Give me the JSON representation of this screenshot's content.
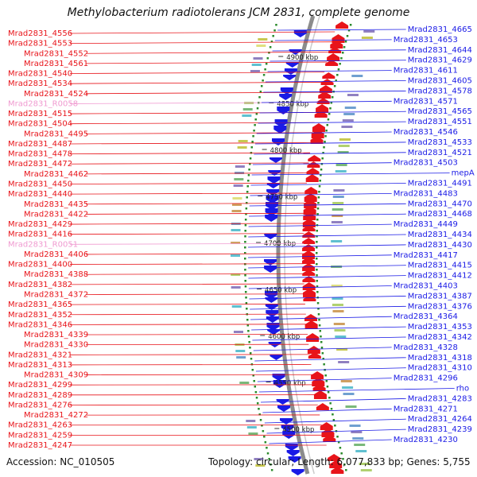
{
  "title": "Methylobacterium radiotolerans JCM 2831, complete genome",
  "accession": "Accession: NC_010505",
  "topology": "Topology: circular; Length: 6,077,833 bp; Genes: 5,755",
  "colors": {
    "forward": "#e8141a",
    "reverse": "#1a1ae6",
    "rna": "#f09ad0",
    "backbone": "#8c8c8c",
    "gc_dots": "#2a8a2a"
  },
  "kbp_ticks": [
    "4500 kbp",
    "4550 kbp",
    "4600 kbp",
    "4650 kbp",
    "4700 kbp",
    "4750 kbp",
    "4800 kbp",
    "4850 kbp",
    "4900 kbp"
  ],
  "left_labels": [
    {
      "text": "Mrad2831_4556",
      "kind": "forward"
    },
    {
      "text": "Mrad2831_4553",
      "kind": "forward"
    },
    {
      "text": "Mrad2831_4552",
      "kind": "forward"
    },
    {
      "text": "Mrad2831_4561",
      "kind": "forward"
    },
    {
      "text": "Mrad2831_4540",
      "kind": "forward"
    },
    {
      "text": "Mrad2831_4534",
      "kind": "forward"
    },
    {
      "text": "Mrad2831_4524",
      "kind": "forward"
    },
    {
      "text": "Mrad2831_R0058",
      "kind": "rna"
    },
    {
      "text": "Mrad2831_4515",
      "kind": "forward"
    },
    {
      "text": "Mrad2831_4504",
      "kind": "forward"
    },
    {
      "text": "Mrad2831_4495",
      "kind": "forward"
    },
    {
      "text": "Mrad2831_4487",
      "kind": "forward"
    },
    {
      "text": "Mrad2831_4478",
      "kind": "forward"
    },
    {
      "text": "Mrad2831_4472",
      "kind": "forward"
    },
    {
      "text": "Mrad2831_4462",
      "kind": "forward"
    },
    {
      "text": "Mrad2831_4450",
      "kind": "forward"
    },
    {
      "text": "Mrad2831_4440",
      "kind": "forward"
    },
    {
      "text": "Mrad2831_4435",
      "kind": "forward"
    },
    {
      "text": "Mrad2831_4422",
      "kind": "forward"
    },
    {
      "text": "Mrad2831_4429",
      "kind": "forward"
    },
    {
      "text": "Mrad2831_4416",
      "kind": "forward"
    },
    {
      "text": "Mrad2831_R0051",
      "kind": "rna"
    },
    {
      "text": "Mrad2831_4406",
      "kind": "forward"
    },
    {
      "text": "Mrad2831_4400",
      "kind": "forward"
    },
    {
      "text": "Mrad2831_4388",
      "kind": "forward"
    },
    {
      "text": "Mrad2831_4382",
      "kind": "forward"
    },
    {
      "text": "Mrad2831_4372",
      "kind": "forward"
    },
    {
      "text": "Mrad2831_4365",
      "kind": "forward"
    },
    {
      "text": "Mrad2831_4352",
      "kind": "forward"
    },
    {
      "text": "Mrad2831_4346",
      "kind": "forward"
    },
    {
      "text": "Mrad2831_4339",
      "kind": "forward"
    },
    {
      "text": "Mrad2831_4330",
      "kind": "forward"
    },
    {
      "text": "Mrad2831_4321",
      "kind": "forward"
    },
    {
      "text": "Mrad2831_4313",
      "kind": "forward"
    },
    {
      "text": "Mrad2831_4309",
      "kind": "forward"
    },
    {
      "text": "Mrad2831_4299",
      "kind": "forward"
    },
    {
      "text": "Mrad2831_4289",
      "kind": "forward"
    },
    {
      "text": "Mrad2831_4276",
      "kind": "forward"
    },
    {
      "text": "Mrad2831_4272",
      "kind": "forward"
    },
    {
      "text": "Mrad2831_4263",
      "kind": "forward"
    },
    {
      "text": "Mrad2831_4259",
      "kind": "forward"
    },
    {
      "text": "Mrad2831_4247",
      "kind": "forward"
    }
  ],
  "right_labels": [
    {
      "text": "Mrad2831_4665",
      "kind": "reverse"
    },
    {
      "text": "Mrad2831_4653",
      "kind": "reverse"
    },
    {
      "text": "Mrad2831_4644",
      "kind": "reverse"
    },
    {
      "text": "Mrad2831_4629",
      "kind": "reverse"
    },
    {
      "text": "Mrad2831_4611",
      "kind": "reverse"
    },
    {
      "text": "Mrad2831_4605",
      "kind": "reverse"
    },
    {
      "text": "Mrad2831_4578",
      "kind": "reverse"
    },
    {
      "text": "Mrad2831_4571",
      "kind": "reverse"
    },
    {
      "text": "Mrad2831_4565",
      "kind": "reverse"
    },
    {
      "text": "Mrad2831_4551",
      "kind": "reverse"
    },
    {
      "text": "Mrad2831_4546",
      "kind": "reverse"
    },
    {
      "text": "Mrad2831_4533",
      "kind": "reverse"
    },
    {
      "text": "Mrad2831_4521",
      "kind": "reverse"
    },
    {
      "text": "Mrad2831_4503",
      "kind": "reverse"
    },
    {
      "text": "mepA",
      "kind": "reverse"
    },
    {
      "text": "Mrad2831_4491",
      "kind": "reverse"
    },
    {
      "text": "Mrad2831_4483",
      "kind": "reverse"
    },
    {
      "text": "Mrad2831_4470",
      "kind": "reverse"
    },
    {
      "text": "Mrad2831_4468",
      "kind": "reverse"
    },
    {
      "text": "Mrad2831_4449",
      "kind": "reverse"
    },
    {
      "text": "Mrad2831_4434",
      "kind": "reverse"
    },
    {
      "text": "Mrad2831_4430",
      "kind": "reverse"
    },
    {
      "text": "Mrad2831_4417",
      "kind": "reverse"
    },
    {
      "text": "Mrad2831_4415",
      "kind": "reverse"
    },
    {
      "text": "Mrad2831_4412",
      "kind": "reverse"
    },
    {
      "text": "Mrad2831_4403",
      "kind": "reverse"
    },
    {
      "text": "Mrad2831_4387",
      "kind": "reverse"
    },
    {
      "text": "Mrad2831_4376",
      "kind": "reverse"
    },
    {
      "text": "Mrad2831_4364",
      "kind": "reverse"
    },
    {
      "text": "Mrad2831_4353",
      "kind": "reverse"
    },
    {
      "text": "Mrad2831_4342",
      "kind": "reverse"
    },
    {
      "text": "Mrad2831_4328",
      "kind": "reverse"
    },
    {
      "text": "Mrad2831_4318",
      "kind": "reverse"
    },
    {
      "text": "Mrad2831_4310",
      "kind": "reverse"
    },
    {
      "text": "Mrad2831_4296",
      "kind": "reverse"
    },
    {
      "text": "rho",
      "kind": "reverse"
    },
    {
      "text": "Mrad2831_4283",
      "kind": "reverse"
    },
    {
      "text": "Mrad2831_4271",
      "kind": "reverse"
    },
    {
      "text": "Mrad2831_4264",
      "kind": "reverse"
    },
    {
      "text": "Mrad2831_4239",
      "kind": "reverse"
    },
    {
      "text": "Mrad2831_4230",
      "kind": "reverse"
    }
  ]
}
